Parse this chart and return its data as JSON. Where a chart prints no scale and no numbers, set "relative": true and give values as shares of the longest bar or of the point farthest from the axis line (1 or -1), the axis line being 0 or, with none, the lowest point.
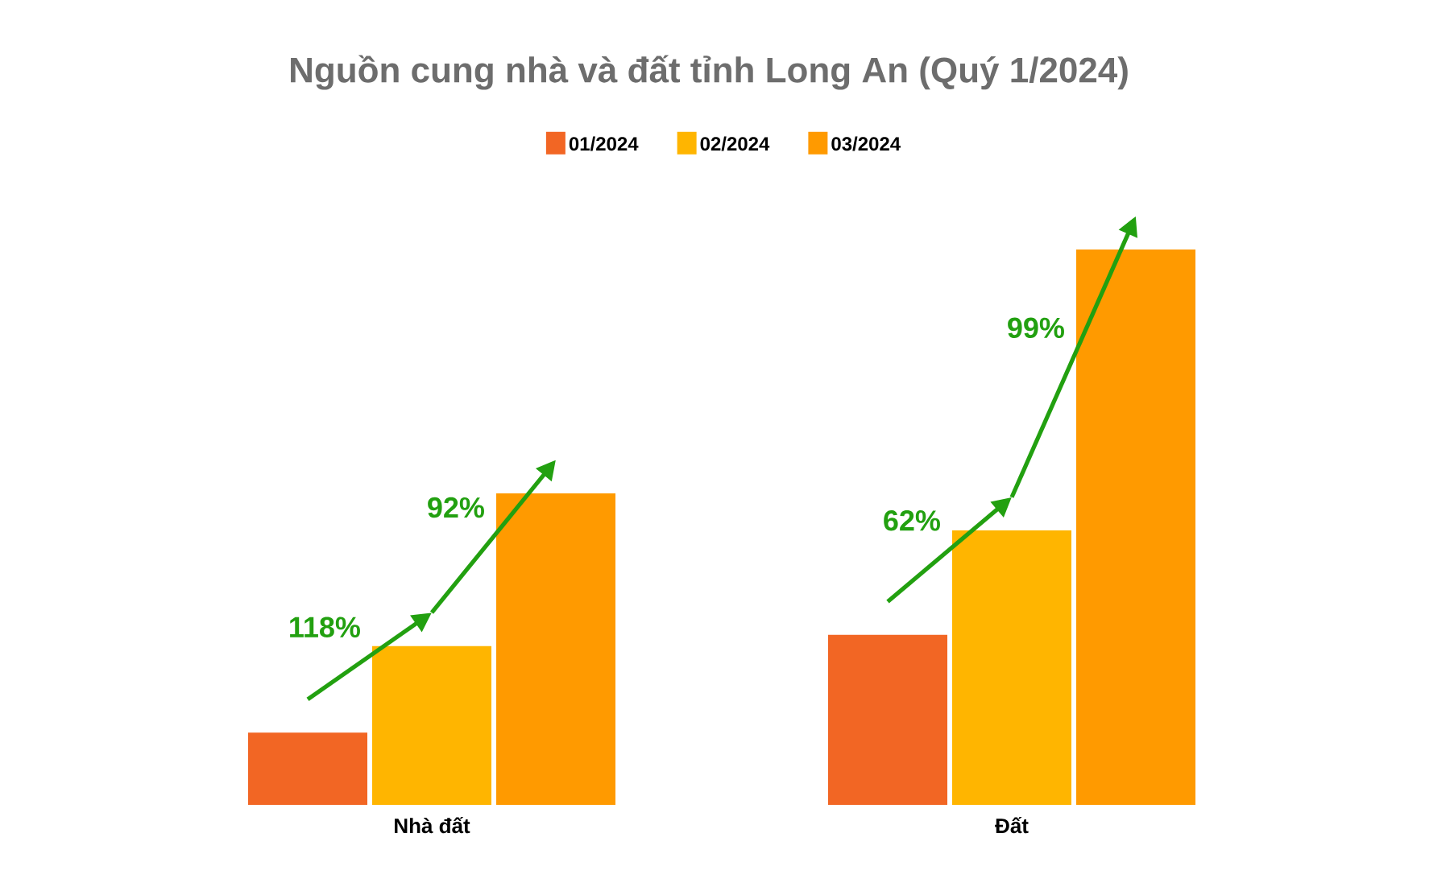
{
  "chart_data": {
    "type": "bar",
    "title": "Nguồn cung nhà và đất tỉnh Long An (Quý 1/2024)",
    "categories": [
      "Nhà đất",
      "Đất"
    ],
    "series": [
      {
        "name": "01/2024",
        "color": "#f26624",
        "values": [
          0.13,
          0.306
        ]
      },
      {
        "name": "02/2024",
        "color": "#ffb500",
        "values": [
          0.286,
          0.494
        ]
      },
      {
        "name": "03/2024",
        "color": "#ff9a00",
        "values": [
          0.561,
          1
        ]
      }
    ],
    "relative": true,
    "legend": "top",
    "annotations": [
      "118%",
      "92%",
      "62%",
      "99%"
    ]
  }
}
